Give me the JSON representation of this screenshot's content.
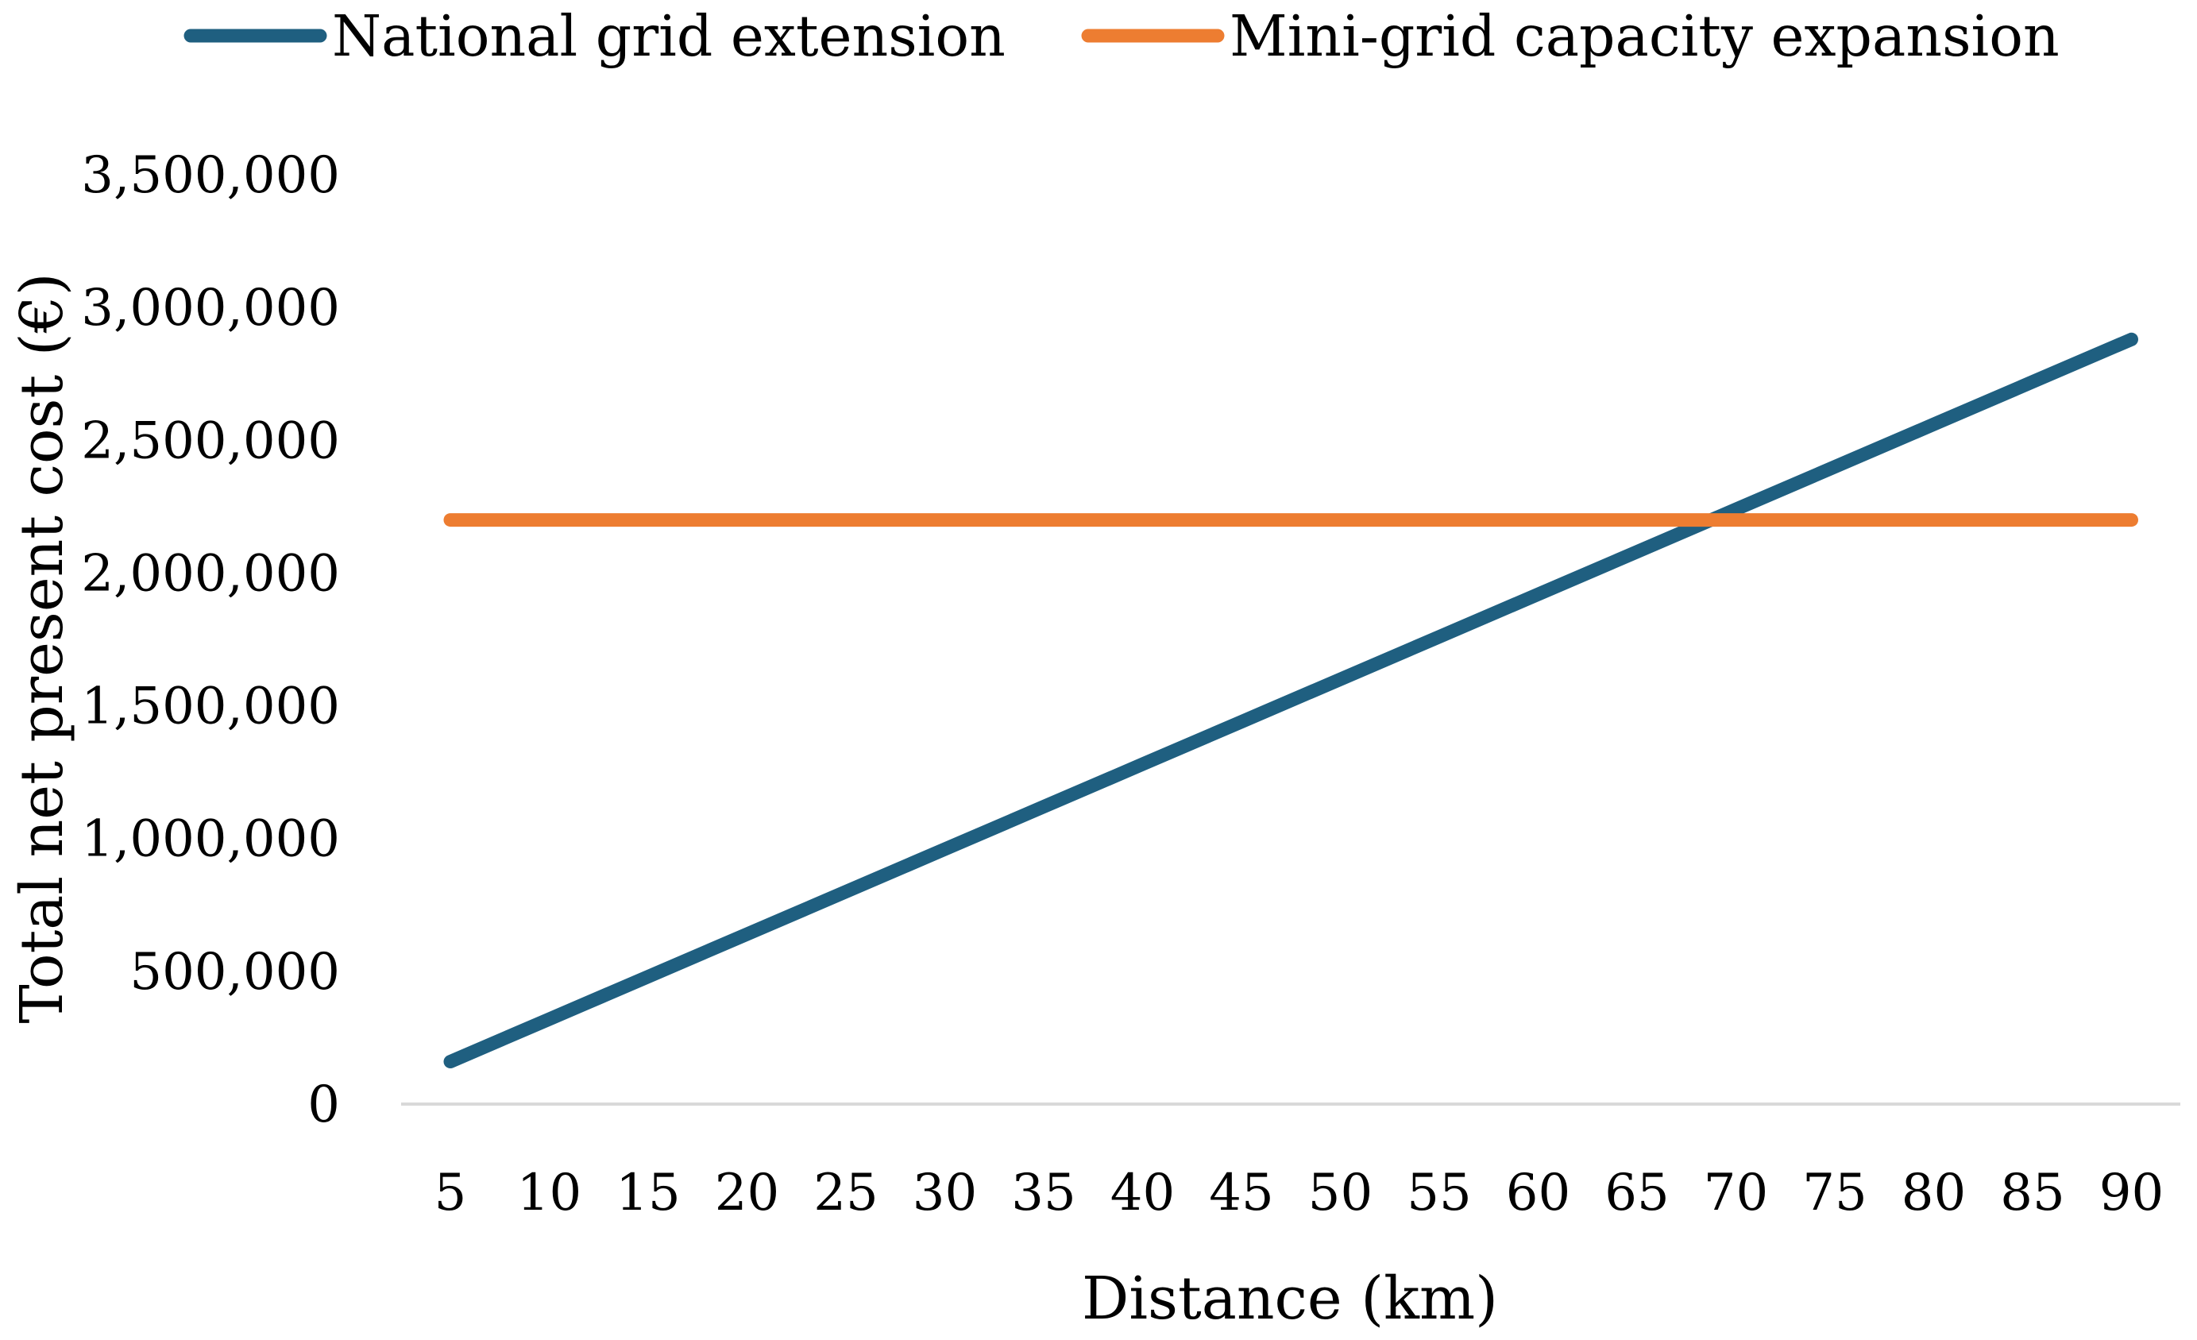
{
  "chart_data": {
    "type": "line",
    "title": "",
    "xlabel": "Distance (km)",
    "ylabel": "Total net present cost (€)",
    "x": [
      5,
      10,
      15,
      20,
      25,
      30,
      35,
      40,
      45,
      50,
      55,
      60,
      65,
      70,
      75,
      80,
      85,
      90
    ],
    "x_tick_labels": [
      "5",
      "10",
      "15",
      "20",
      "25",
      "30",
      "35",
      "40",
      "45",
      "50",
      "55",
      "60",
      "65",
      "70",
      "75",
      "80",
      "85",
      "90"
    ],
    "ylim": [
      0,
      3500000
    ],
    "y_ticks": [
      0,
      500000,
      1000000,
      1500000,
      2000000,
      2500000,
      3000000,
      3500000
    ],
    "y_tick_labels": [
      "0",
      "500,000",
      "1,000,000",
      "1,500,000",
      "2,000,000",
      "2,500,000",
      "3,000,000",
      "3,500,000"
    ],
    "grid": false,
    "legend_position": "top",
    "series": [
      {
        "name": "National grid extension",
        "color": "#1f5f80",
        "values": [
          160000,
          320000,
          480000,
          640000,
          800000,
          960000,
          1120000,
          1280000,
          1440000,
          1600000,
          1760000,
          1920000,
          2080000,
          2240000,
          2400000,
          2560000,
          2720000,
          2880000
        ]
      },
      {
        "name": "Mini-grid capacity expansion",
        "color": "#ed7d31",
        "values": [
          2200000,
          2200000,
          2200000,
          2200000,
          2200000,
          2200000,
          2200000,
          2200000,
          2200000,
          2200000,
          2200000,
          2200000,
          2200000,
          2200000,
          2200000,
          2200000,
          2200000,
          2200000
        ]
      }
    ],
    "axis_color": "#d9d9d9"
  }
}
